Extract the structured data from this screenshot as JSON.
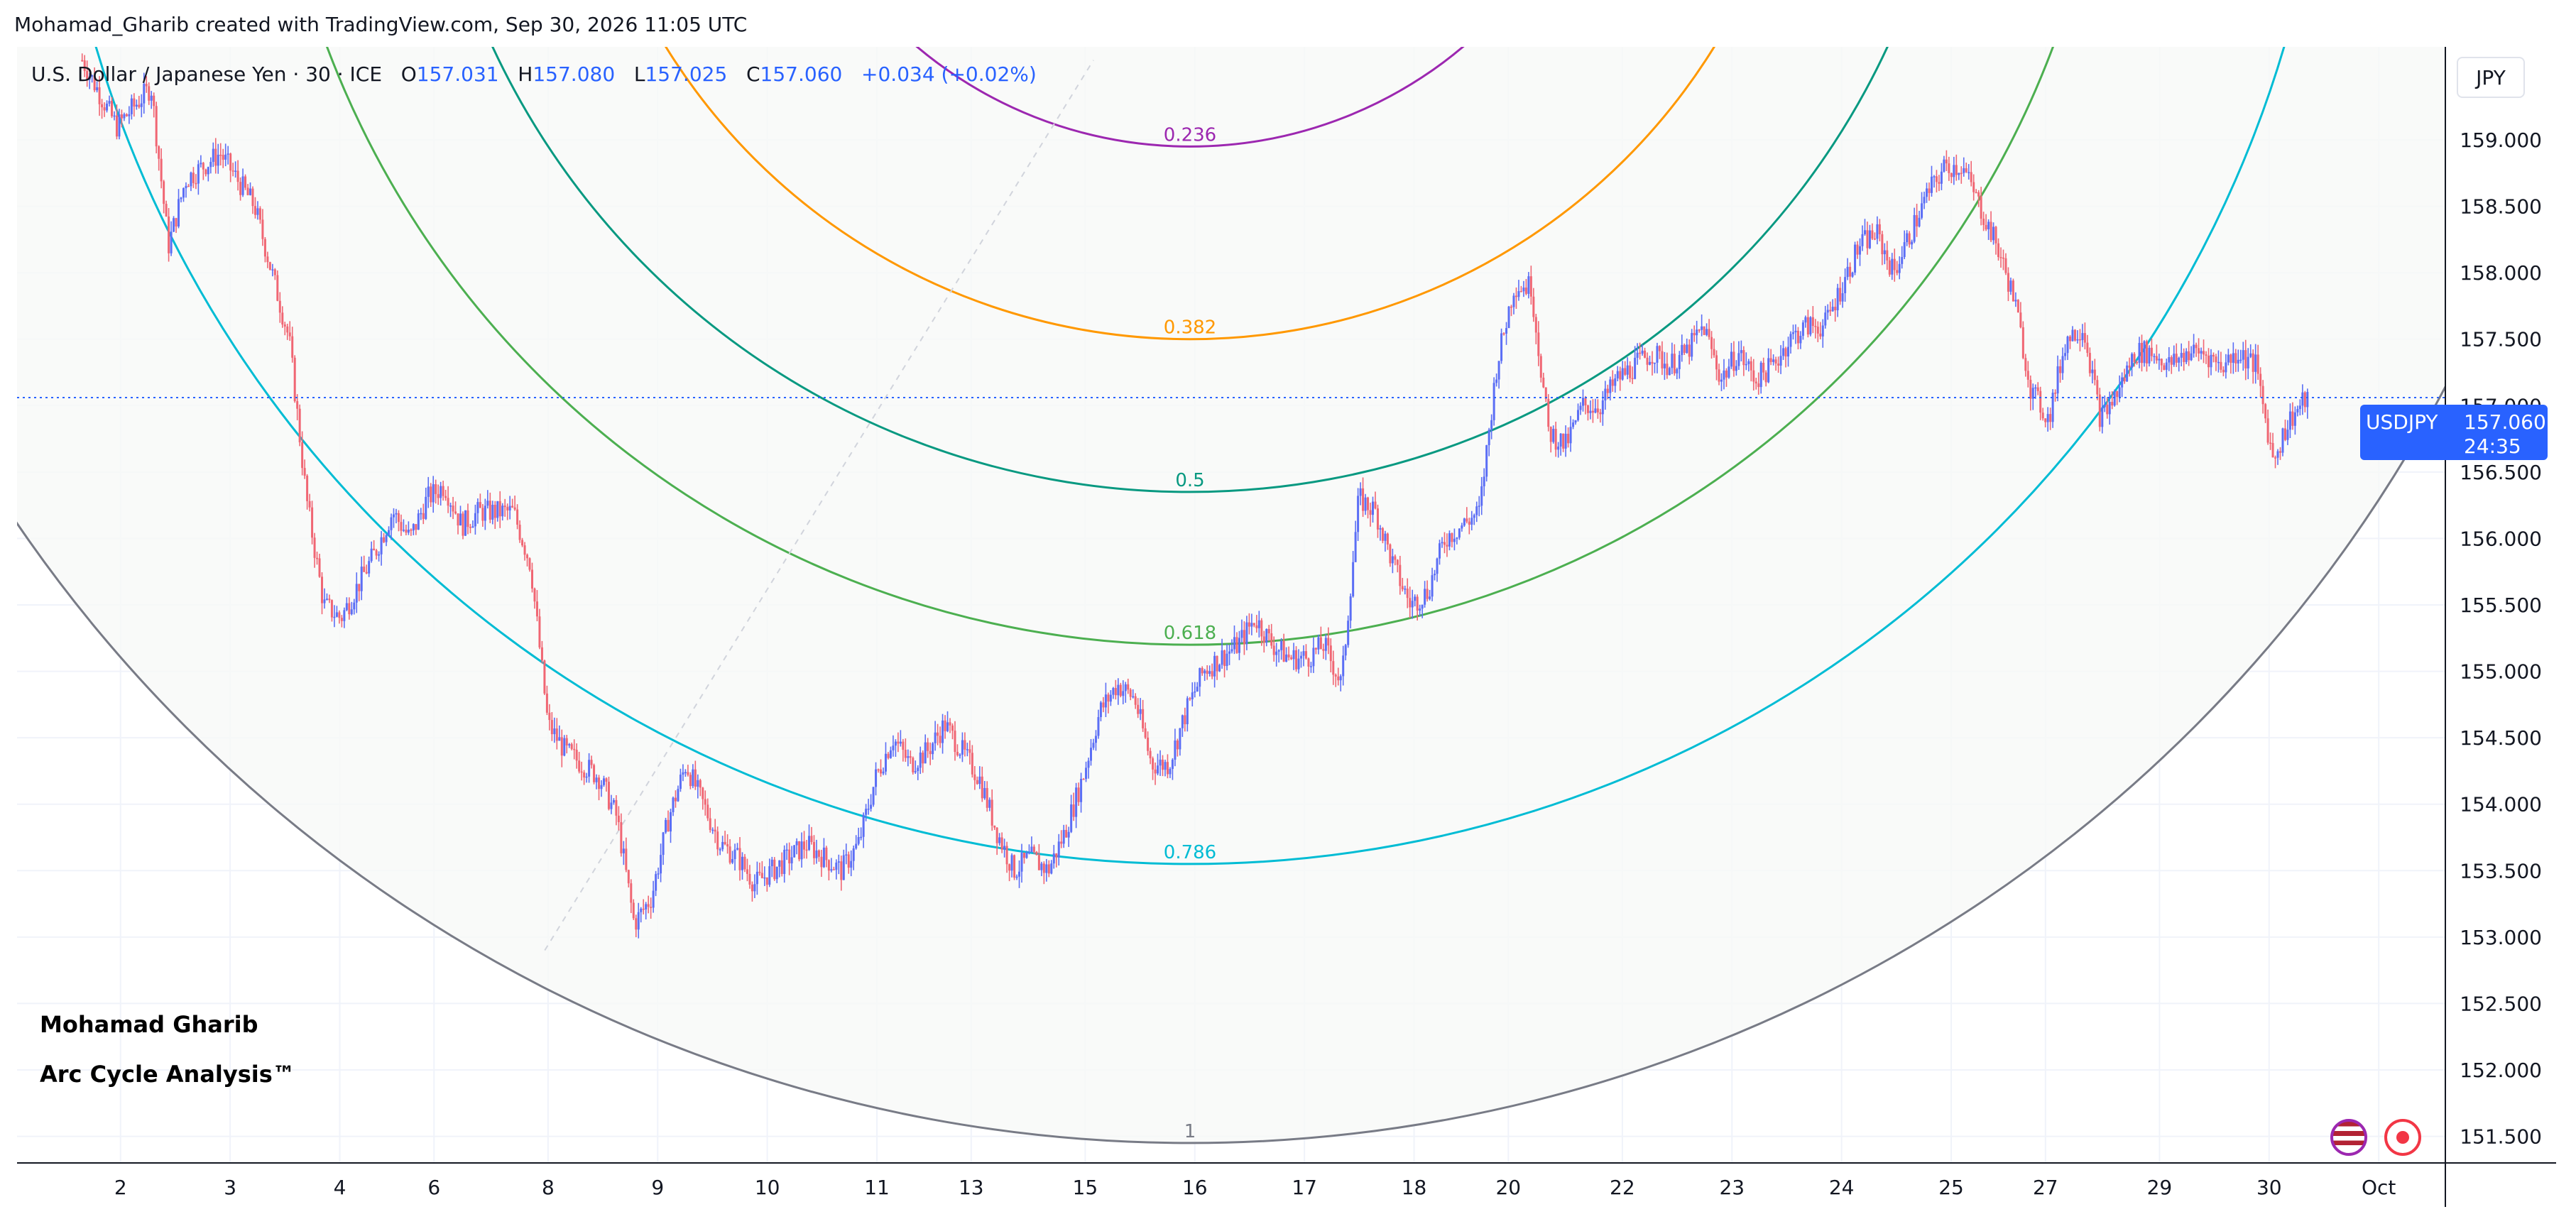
{
  "attribution": "Mohamad_Gharib created with TradingView.com, Sep 30, 2026 11:05 UTC",
  "header": {
    "instrument": "U.S. Dollar / Japanese Yen · 30 · ICE",
    "open_label": "O",
    "open": "157.031",
    "high_label": "H",
    "high": "157.080",
    "low_label": "L",
    "low": "157.025",
    "close_label": "C",
    "close": "157.060",
    "change": "+0.034 (+0.02%)"
  },
  "currency_button": "JPY",
  "watermark": {
    "line1": "Mohamad Gharib",
    "line2": "Arc Cycle Analysis™"
  },
  "price_tag": {
    "symbol": "USDJPY",
    "price": "157.060",
    "countdown": "24:35"
  },
  "icons": [
    "us-flag-icon",
    "record-icon"
  ],
  "colors": {
    "up": "#5b6ef5",
    "down": "#f06673",
    "price_line": "#2962ff"
  },
  "chart_data": {
    "type": "candlestick",
    "title": "",
    "ylim": [
      151.3,
      159.7
    ],
    "y_ticks": [
      159.0,
      158.5,
      158.0,
      157.5,
      157.0,
      156.5,
      156.0,
      155.5,
      155.0,
      154.5,
      154.0,
      153.5,
      153.0,
      152.5,
      152.0,
      151.5
    ],
    "y_tick_labels": [
      "159.000",
      "158.500",
      "158.000",
      "157.500",
      "157.000",
      "156.500",
      "156.000",
      "155.500",
      "155.000",
      "154.500",
      "154.000",
      "153.500",
      "153.000",
      "152.500",
      "152.000",
      "151.500"
    ],
    "x_ticks": [
      {
        "label": "2",
        "t": 4.0
      },
      {
        "label": "3",
        "t": 14.0
      },
      {
        "label": "4",
        "t": 24.0
      },
      {
        "label": "6",
        "t": 32.6
      },
      {
        "label": "8",
        "t": 43.0
      },
      {
        "label": "9",
        "t": 53.0
      },
      {
        "label": "10",
        "t": 63.0
      },
      {
        "label": "11",
        "t": 73.0
      },
      {
        "label": "13",
        "t": 81.6
      },
      {
        "label": "15",
        "t": 92.0
      },
      {
        "label": "16",
        "t": 102.0
      },
      {
        "label": "17",
        "t": 112.0
      },
      {
        "label": "18",
        "t": 122.0
      },
      {
        "label": "20",
        "t": 130.6
      },
      {
        "label": "22",
        "t": 141.0
      },
      {
        "label": "23",
        "t": 151.0
      },
      {
        "label": "24",
        "t": 161.0
      },
      {
        "label": "25",
        "t": 171.0
      },
      {
        "label": "27",
        "t": 179.6
      },
      {
        "label": "29",
        "t": 190.0
      },
      {
        "label": "30",
        "t": 200.0
      },
      {
        "label": "Oct",
        "t": 210.0
      }
    ],
    "current_price": 157.06,
    "price_path": [
      [
        0,
        159.6
      ],
      [
        2,
        159.1
      ],
      [
        4,
        159.4
      ],
      [
        5,
        158.2
      ],
      [
        6,
        158.7
      ],
      [
        8,
        158.9
      ],
      [
        10,
        158.5
      ],
      [
        12,
        157.5
      ],
      [
        13,
        156.3
      ],
      [
        14,
        155.5
      ],
      [
        15,
        155.4
      ],
      [
        17,
        155.9
      ],
      [
        18,
        156.2
      ],
      [
        19,
        156.0
      ],
      [
        20,
        156.3
      ],
      [
        21,
        156.4
      ],
      [
        22,
        156.1
      ],
      [
        23,
        156.2
      ],
      [
        25,
        156.2
      ],
      [
        26,
        155.8
      ],
      [
        27,
        154.6
      ],
      [
        28,
        154.4
      ],
      [
        29,
        154.3
      ],
      [
        30,
        154.2
      ],
      [
        31,
        153.9
      ],
      [
        32,
        153.1
      ],
      [
        33,
        153.3
      ],
      [
        34,
        153.9
      ],
      [
        35,
        154.3
      ],
      [
        36,
        154.0
      ],
      [
        37,
        153.7
      ],
      [
        38,
        153.6
      ],
      [
        39,
        153.4
      ],
      [
        40,
        153.5
      ],
      [
        41,
        153.6
      ],
      [
        42,
        153.7
      ],
      [
        43,
        153.6
      ],
      [
        44,
        153.5
      ],
      [
        45,
        153.7
      ],
      [
        46,
        154.2
      ],
      [
        47,
        154.5
      ],
      [
        48,
        154.3
      ],
      [
        49,
        154.4
      ],
      [
        50,
        154.6
      ],
      [
        51,
        154.4
      ],
      [
        52,
        154.2
      ],
      [
        53,
        153.8
      ],
      [
        54,
        153.5
      ],
      [
        55,
        153.6
      ],
      [
        56,
        153.5
      ],
      [
        57,
        153.8
      ],
      [
        58,
        154.2
      ],
      [
        59,
        154.7
      ],
      [
        60,
        154.9
      ],
      [
        61,
        154.8
      ],
      [
        62,
        154.3
      ],
      [
        63,
        154.3
      ],
      [
        64,
        154.7
      ],
      [
        65,
        155.0
      ],
      [
        66,
        155.1
      ],
      [
        67,
        155.2
      ],
      [
        68,
        155.4
      ],
      [
        69,
        155.2
      ],
      [
        70,
        155.1
      ],
      [
        71,
        155.1
      ],
      [
        72,
        155.2
      ],
      [
        73,
        154.9
      ],
      [
        74,
        156.3
      ],
      [
        75,
        156.2
      ],
      [
        76,
        155.8
      ],
      [
        77,
        155.5
      ],
      [
        78,
        155.6
      ],
      [
        79,
        156.0
      ],
      [
        80,
        156.1
      ],
      [
        81,
        156.2
      ],
      [
        82,
        157.3
      ],
      [
        83,
        157.9
      ],
      [
        84,
        157.9
      ],
      [
        85,
        156.8
      ],
      [
        86,
        156.7
      ],
      [
        87,
        157.0
      ],
      [
        88,
        157.0
      ],
      [
        89,
        157.2
      ],
      [
        90,
        157.3
      ],
      [
        91,
        157.4
      ],
      [
        92,
        157.3
      ],
      [
        93,
        157.4
      ],
      [
        94,
        157.6
      ],
      [
        95,
        157.2
      ],
      [
        96,
        157.4
      ],
      [
        97,
        157.2
      ],
      [
        98,
        157.3
      ],
      [
        99,
        157.5
      ],
      [
        100,
        157.6
      ],
      [
        101,
        157.6
      ],
      [
        102,
        157.9
      ],
      [
        103,
        158.2
      ],
      [
        104,
        158.3
      ],
      [
        105,
        158.0
      ],
      [
        106,
        158.3
      ],
      [
        107,
        158.6
      ],
      [
        108,
        158.8
      ],
      [
        109,
        158.8
      ],
      [
        110,
        158.5
      ],
      [
        111,
        158.2
      ],
      [
        112,
        157.8
      ],
      [
        113,
        157.1
      ],
      [
        114,
        156.9
      ],
      [
        115,
        157.5
      ],
      [
        116,
        157.6
      ],
      [
        117,
        156.9
      ],
      [
        118,
        157.1
      ],
      [
        119,
        157.4
      ],
      [
        120,
        157.4
      ],
      [
        121,
        157.3
      ],
      [
        122,
        157.4
      ],
      [
        123,
        157.4
      ],
      [
        124,
        157.3
      ],
      [
        125,
        157.4
      ],
      [
        126,
        157.3
      ],
      [
        127,
        156.6
      ],
      [
        128,
        156.9
      ],
      [
        129,
        157.06
      ]
    ],
    "arcs": [
      {
        "label": "0.236",
        "color": "#9c27b0",
        "bottom_price": 158.95
      },
      {
        "label": "0.382",
        "color": "#ff9800",
        "bottom_price": 157.5
      },
      {
        "label": "0.5",
        "color": "#089981",
        "bottom_price": 156.35
      },
      {
        "label": "0.618",
        "color": "#4caf50",
        "bottom_price": 155.2
      },
      {
        "label": "0.786",
        "color": "#00bcd4",
        "bottom_price": 153.55
      },
      {
        "label": "1",
        "color": "#787b86",
        "bottom_price": 151.45
      }
    ],
    "grid": true,
    "legend": "none"
  }
}
